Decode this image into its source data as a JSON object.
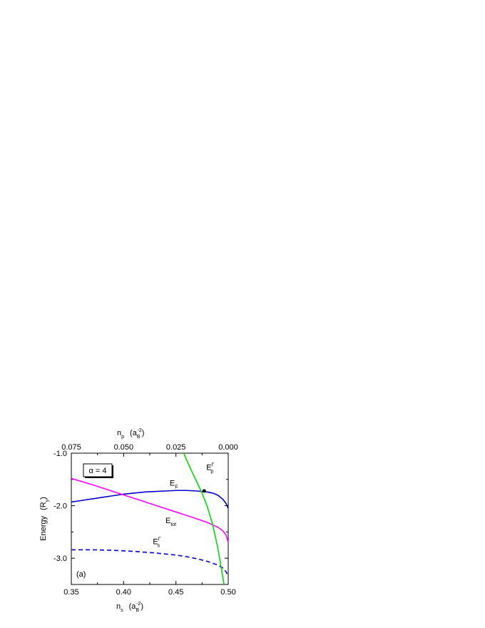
{
  "chart_data": {
    "type": "line",
    "panel_label": "(a)",
    "annotation": "α = 4",
    "x_axis": {
      "label": "n",
      "label_sub": "s",
      "unit": "(a",
      "unit_sub": "B",
      "unit_sup": "-2",
      "unit_close": ")",
      "range": [
        0.35,
        0.5
      ],
      "ticks": [
        "0.35",
        "0.40",
        "0.45",
        "0.50"
      ]
    },
    "top_axis": {
      "label": "n",
      "label_sub": "p",
      "unit": "(a",
      "unit_sub": "B",
      "unit_sup": "-2",
      "unit_close": ")",
      "tick_values": [
        "0.075",
        "0.050",
        "0.025",
        "0.000"
      ]
    },
    "y_axis": {
      "label": "Energy",
      "unit": "(R",
      "unit_sub": "y",
      "unit_close": ")",
      "range": [
        -3.5,
        -1.0
      ],
      "ticks": [
        "-1.0",
        "-2.0",
        "-3.0"
      ]
    },
    "series": [
      {
        "name": "E",
        "name_sub": "F",
        "color": "#0000cc",
        "style": "solid",
        "x": [
          0.35,
          0.36,
          0.37,
          0.38,
          0.39,
          0.4,
          0.41,
          0.42,
          0.43,
          0.44,
          0.45,
          0.46,
          0.47,
          0.475,
          0.48,
          0.485,
          0.49,
          0.495,
          0.498,
          0.5
        ],
        "y": [
          -1.93,
          -1.9,
          -1.87,
          -1.84,
          -1.81,
          -1.78,
          -1.76,
          -1.74,
          -1.73,
          -1.72,
          -1.71,
          -1.71,
          -1.72,
          -1.73,
          -1.74,
          -1.76,
          -1.8,
          -1.88,
          -1.96,
          -2.05
        ]
      },
      {
        "name": "E",
        "name_sub": "tot",
        "color": "#ff00ff",
        "style": "solid",
        "x": [
          0.35,
          0.37,
          0.39,
          0.41,
          0.43,
          0.45,
          0.47,
          0.48,
          0.49,
          0.495,
          0.498,
          0.5
        ],
        "y": [
          -1.48,
          -1.6,
          -1.73,
          -1.86,
          -1.99,
          -2.12,
          -2.25,
          -2.32,
          -2.41,
          -2.48,
          -2.56,
          -2.7
        ]
      },
      {
        "name": "E",
        "name_sub": "s",
        "name_sup": "Γ",
        "color": "#0000cc",
        "style": "dashed",
        "x": [
          0.35,
          0.37,
          0.39,
          0.41,
          0.43,
          0.45,
          0.46,
          0.47,
          0.48,
          0.49,
          0.495,
          0.498,
          0.5
        ],
        "y": [
          -2.84,
          -2.84,
          -2.85,
          -2.87,
          -2.9,
          -2.94,
          -2.97,
          -3.01,
          -3.06,
          -3.13,
          -3.19,
          -3.26,
          -3.35
        ]
      },
      {
        "name": "E",
        "name_sub": "p",
        "name_sup": "Γ",
        "color": "#00dd00",
        "style": "solid",
        "x": [
          0.4575,
          0.46,
          0.465,
          0.47,
          0.475,
          0.48,
          0.485,
          0.49,
          0.493,
          0.496
        ],
        "y": [
          -1.0,
          -1.12,
          -1.34,
          -1.55,
          -1.76,
          -2.02,
          -2.35,
          -2.8,
          -3.15,
          -3.5
        ]
      }
    ],
    "marker": {
      "x": 0.477,
      "y": -1.72
    }
  }
}
